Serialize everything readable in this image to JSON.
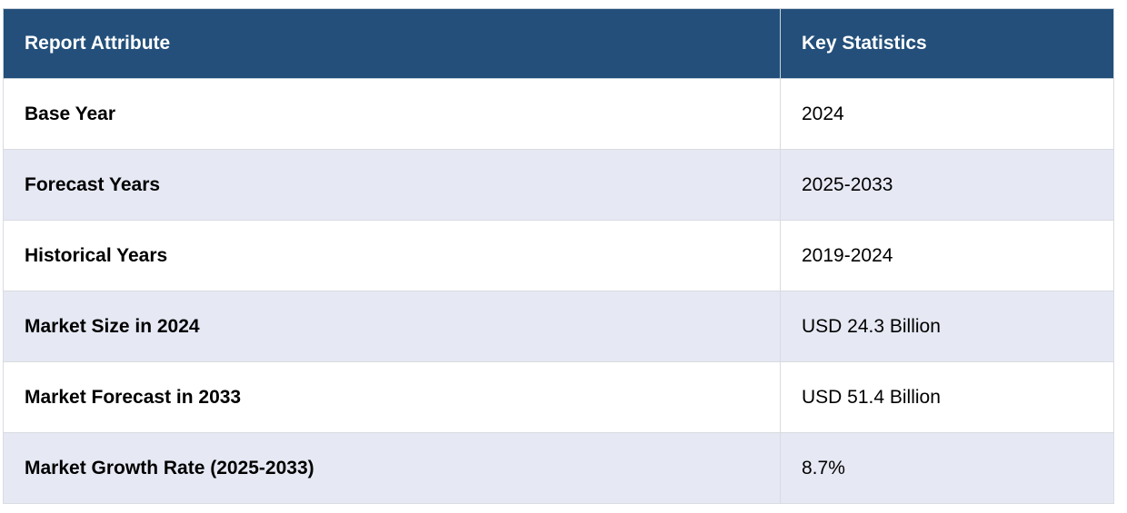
{
  "table": {
    "headers": {
      "attribute": "Report Attribute",
      "statistics": "Key Statistics"
    },
    "rows": [
      {
        "attribute": "Base Year",
        "value": "2024"
      },
      {
        "attribute": "Forecast Years",
        "value": "2025-2033"
      },
      {
        "attribute": "Historical Years",
        "value": "2019-2024"
      },
      {
        "attribute": "Market Size in 2024",
        "value": "USD 24.3 Billion"
      },
      {
        "attribute": "Market Forecast in 2033",
        "value": "USD 51.4 Billion"
      },
      {
        "attribute": "Market Growth Rate (2025-2033)",
        "value": "8.7%"
      }
    ]
  }
}
